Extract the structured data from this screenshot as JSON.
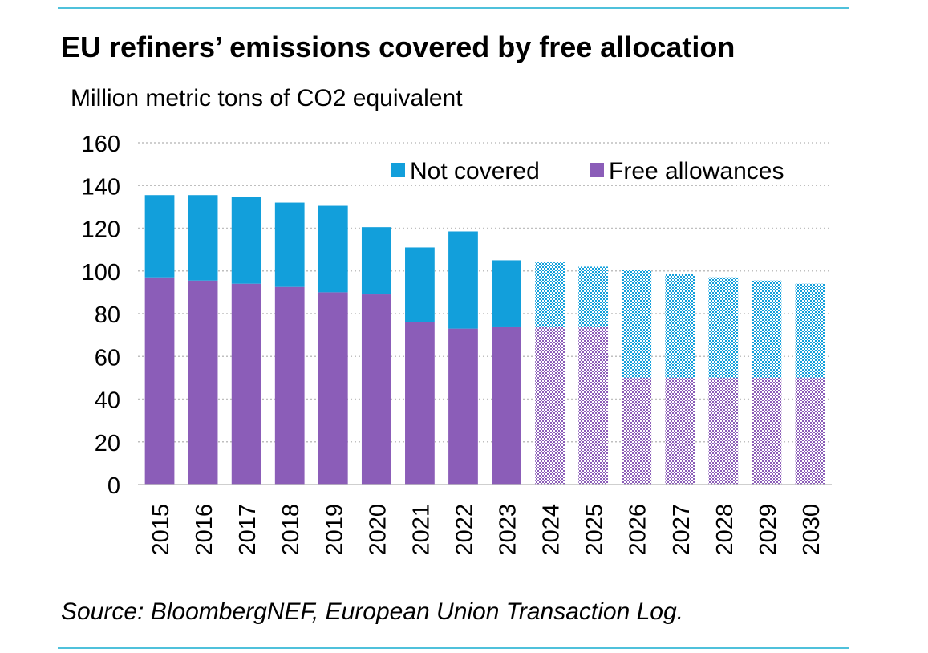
{
  "title": "EU refiners’ emissions covered by free allocation",
  "subtitle": "Million metric tons of CO2 equivalent",
  "source": "Source: BloombergNEF, European Union Transaction Log.",
  "colors": {
    "rule": "#4fc1db",
    "not_covered": "#129fdb",
    "free_allowances": "#8b5db8",
    "grid": "#bfbfbf",
    "axis": "#bfbfbf"
  },
  "chart_data": {
    "type": "bar",
    "stacked": true,
    "title": "EU refiners’ emissions covered by free allocation",
    "ylabel": "Million metric tons of CO2 equivalent",
    "xlabel": "",
    "ylim": [
      0,
      160
    ],
    "yticks": [
      0,
      20,
      40,
      60,
      80,
      100,
      120,
      140,
      160
    ],
    "grid": "horizontal dotted",
    "legend_position": "top-right",
    "categories": [
      "2015",
      "2016",
      "2017",
      "2018",
      "2019",
      "2020",
      "2021",
      "2022",
      "2023",
      "2024",
      "2025",
      "2026",
      "2027",
      "2028",
      "2029",
      "2030"
    ],
    "forecast_from": "2024",
    "forecast_style": "checkered",
    "series": [
      {
        "name": "Free allowances",
        "color": "#8b5db8",
        "values": [
          97,
          95.5,
          94,
          92.5,
          90,
          89,
          76,
          73,
          74,
          74,
          74,
          50,
          50,
          50,
          50,
          50
        ]
      },
      {
        "name": "Not covered",
        "color": "#129fdb",
        "values": [
          38.5,
          40,
          40.5,
          39.5,
          40.5,
          31.5,
          35,
          45.5,
          31,
          30,
          28,
          50.5,
          48.5,
          47,
          45.5,
          44
        ]
      }
    ],
    "legend": [
      {
        "name": "Not covered",
        "color": "#129fdb"
      },
      {
        "name": "Free allowances",
        "color": "#8b5db8"
      }
    ]
  }
}
